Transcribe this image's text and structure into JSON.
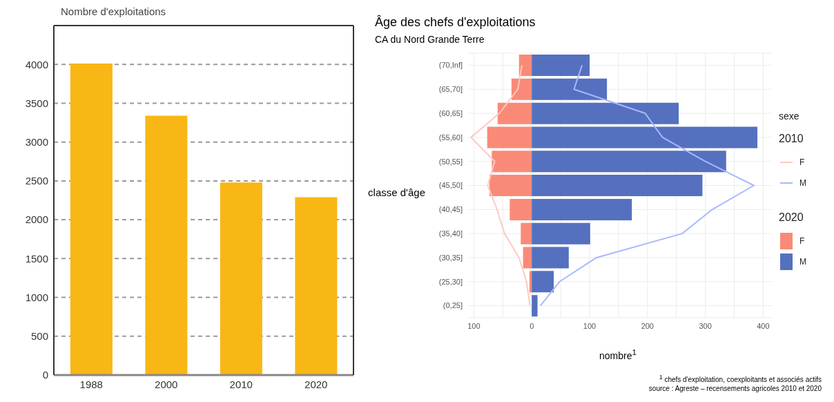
{
  "chart_data": [
    {
      "type": "bar",
      "ylabel": "Nombre d'exploitations",
      "categories": [
        "1988",
        "2000",
        "2010",
        "2020"
      ],
      "values": [
        4010,
        3340,
        2480,
        2290
      ],
      "color": "#f9b715",
      "ylim": [
        0,
        4500
      ],
      "yticks": [
        0,
        500,
        1000,
        1500,
        2000,
        2500,
        3000,
        3500,
        4000
      ],
      "grid": "y",
      "line_style": "dashed"
    },
    {
      "type": "bar",
      "orientation": "horizontal",
      "stacked": true,
      "title": "Âge des chefs d'exploitations",
      "subtitle": "CA du Nord Grande Terre",
      "ylabel": "classe d'âge",
      "xlabel": "nombre$^{1}$",
      "legend_title": "sexe",
      "legend": "right",
      "grid": true,
      "categories": [
        "(70,Inf]",
        "(65,70]",
        "(60,65]",
        "(55,60]",
        "(50,55]",
        "(45,50]",
        "(40,45]",
        "(35,40]",
        "(30,35]",
        "(25,30]",
        "(0,25]"
      ],
      "series": [
        {
          "name": "F",
          "type": "bar",
          "color": "#fa8a78",
          "values": [
            -22,
            -35,
            -59,
            -77,
            -69,
            -73,
            -38,
            -19,
            -15,
            -4,
            0
          ]
        },
        {
          "name": "M",
          "type": "bar",
          "color": "#5570bf",
          "values": [
            100,
            130,
            254,
            390,
            336,
            295,
            173,
            101,
            64,
            38,
            10
          ]
        },
        {
          "name": "F",
          "type": "line",
          "color": "#ffc8c0",
          "values": [
            -17,
            -24,
            -56,
            -105,
            -64,
            -76,
            -60,
            -47,
            -22,
            -9,
            -3
          ]
        },
        {
          "name": "M",
          "type": "line",
          "color": "#a8b8ff",
          "values": [
            87,
            73,
            196,
            226,
            300,
            384,
            312,
            260,
            112,
            48,
            15
          ]
        }
      ],
      "xlim": [
        -110,
        415
      ],
      "xticks": [
        {
          "value": -100,
          "label": "100"
        },
        {
          "value": -50,
          "label": null
        },
        0,
        {
          "value": 50,
          "label": null
        },
        100,
        {
          "value": 150,
          "label": null
        },
        200,
        {
          "value": 250,
          "label": null
        },
        300,
        {
          "value": 350,
          "label": null
        },
        400
      ],
      "annotations": [
        "2010",
        "2020",
        "$^{1}$ chefs d'exploitation, coexploitants et associés actifs",
        "source : Agreste – recensements agricoles 2010 et 2020"
      ]
    }
  ]
}
